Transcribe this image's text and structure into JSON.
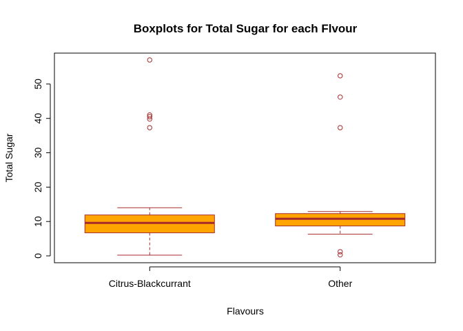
{
  "chart_data": {
    "type": "boxplot",
    "title": "Boxplots for Total Sugar for each Flvour",
    "xlabel": "Flavours",
    "ylabel": "Total Sugar",
    "ylim": [
      -2,
      59
    ],
    "yticks": [
      0,
      10,
      20,
      30,
      40,
      50
    ],
    "categories": [
      "Citrus-Blackcurrant",
      "Other"
    ],
    "box_fill": "#FFA500",
    "line_color": "#A52A2A",
    "boxes": [
      {
        "name": "Citrus-Blackcurrant",
        "whisker_low": 0.2,
        "q1": 6.7,
        "median": 9.6,
        "q3": 11.9,
        "whisker_high": 14.0,
        "outliers": [
          37.3,
          39.8,
          40.5,
          41.0,
          57.0
        ]
      },
      {
        "name": "Other",
        "whisker_low": 6.3,
        "q1": 8.7,
        "median": 10.8,
        "q3": 12.3,
        "whisker_high": 12.9,
        "outliers": [
          0.3,
          1.2,
          37.3,
          46.2,
          52.4
        ]
      }
    ]
  }
}
